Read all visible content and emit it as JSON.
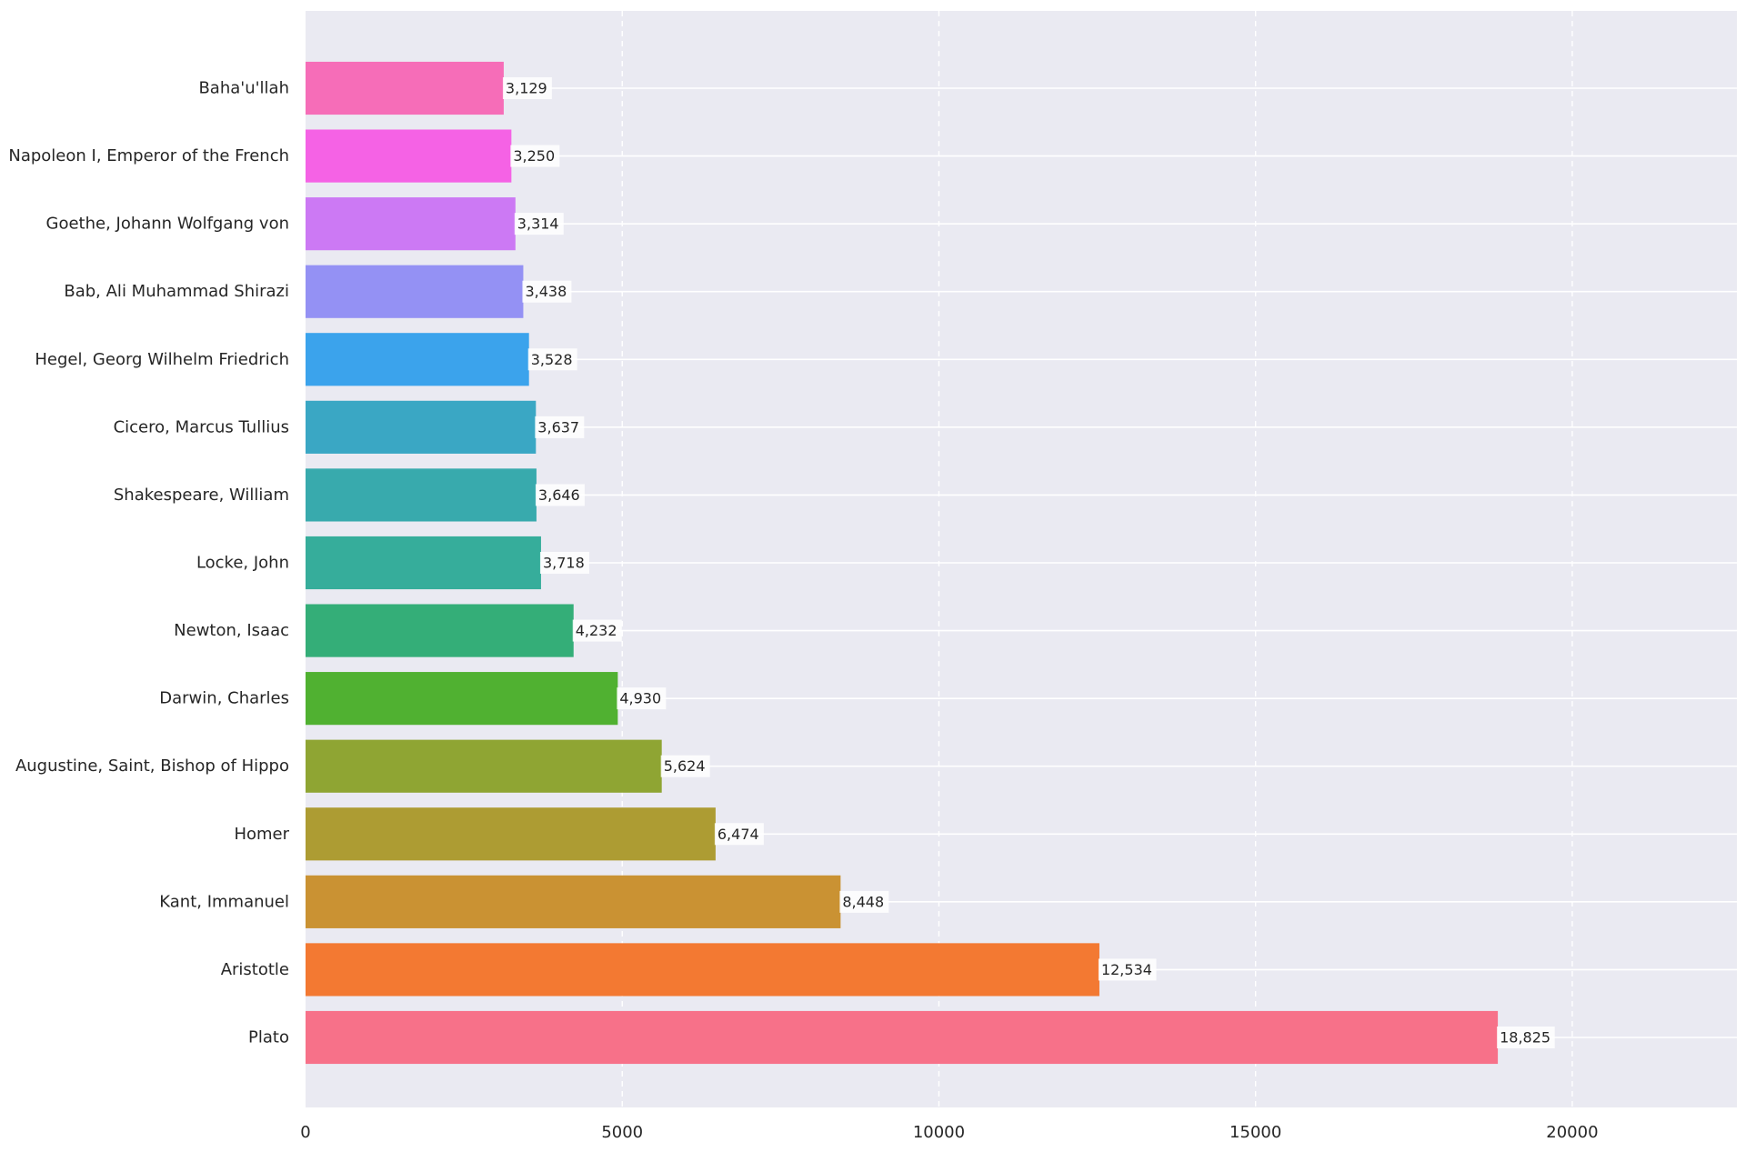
{
  "chart_data": {
    "type": "bar",
    "orientation": "horizontal",
    "title": "",
    "xlabel": "",
    "ylabel": "",
    "xlim": [
      0,
      22600
    ],
    "x_ticks": [
      0,
      5000,
      10000,
      15000,
      20000
    ],
    "x_tick_labels": [
      "0",
      "5000",
      "10000",
      "15000",
      "20000"
    ],
    "grid": true,
    "legend": "none",
    "background_color": "#eaeaf2",
    "categories": [
      "Plato",
      "Aristotle",
      "Kant, Immanuel",
      "Homer",
      "Augustine, Saint, Bishop of Hippo",
      "Darwin, Charles",
      "Newton, Isaac",
      "Locke, John",
      "Shakespeare, William",
      "Cicero, Marcus Tullius",
      "Hegel, Georg Wilhelm Friedrich",
      "Bab, Ali Muhammad Shirazi",
      "Goethe, Johann Wolfgang von",
      "Napoleon I, Emperor of the French",
      "Baha'u'llah"
    ],
    "values": [
      18825,
      12534,
      8448,
      6474,
      5624,
      4930,
      4232,
      3718,
      3646,
      3637,
      3528,
      3438,
      3314,
      3250,
      3129
    ],
    "value_labels": [
      "18,825",
      "12,534",
      "8,448",
      "6,474",
      "5,624",
      "4,930",
      "4,232",
      "3,718",
      "3,646",
      "3,637",
      "3,528",
      "3,438",
      "3,314",
      "3,250",
      "3,129"
    ],
    "colors": [
      "#f77189",
      "#f37932",
      "#ca9233",
      "#ad9c33",
      "#8fa533",
      "#50b131",
      "#34ae78",
      "#36ad9b",
      "#38aaad",
      "#3aa7c4",
      "#3ba3ec",
      "#9491f4",
      "#cc79f4",
      "#f562e5",
      "#f66db8"
    ]
  }
}
